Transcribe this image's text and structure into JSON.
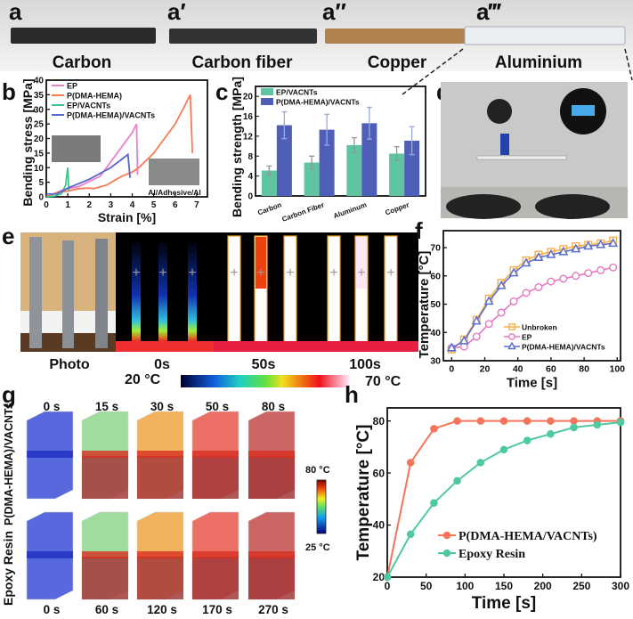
{
  "panel_a": {
    "labels": [
      "a",
      "a′",
      "a″",
      "a‴"
    ],
    "items": [
      "Carbon",
      "Carbon fiber",
      "Copper",
      "Aluminium"
    ]
  },
  "panel_b": {
    "label": "b",
    "inset_label": "Al/Adhesive/Al"
  },
  "panel_c": {
    "label": "c"
  },
  "panel_d": {
    "label": "d"
  },
  "panel_e": {
    "label": "e",
    "frames": [
      "Photo",
      "0s",
      "50s",
      "100s"
    ],
    "colorbar_min": "20 °C",
    "colorbar_max": "70 °C"
  },
  "panel_f": {
    "label": "f"
  },
  "panel_g": {
    "label": "g",
    "row_labels": [
      "P(DMA-HEMA)/VACNTs",
      "Epoxy Resin"
    ],
    "top_times": [
      "0 s",
      "15 s",
      "30 s",
      "50 s",
      "80 s"
    ],
    "bottom_times": [
      "0 s",
      "60 s",
      "120 s",
      "170 s",
      "270 s"
    ],
    "colorbar_max": "80 °C",
    "colorbar_min": "25 °C",
    "box_colors": [
      "#3a4fd8",
      "#8fd88f",
      "#f2a640",
      "#e8564a",
      "#c44a48"
    ]
  },
  "panel_h": {
    "label": "h"
  },
  "chart_data": [
    {
      "id": "b",
      "type": "line",
      "xlabel": "Strain [%]",
      "ylabel": "Bending stress [MPa]",
      "xlim": [
        0,
        7.5
      ],
      "ylim": [
        0,
        40
      ],
      "xticks": [
        0,
        1,
        2,
        3,
        4,
        5,
        6,
        7
      ],
      "yticks": [
        0,
        5,
        10,
        15,
        20,
        25,
        30,
        35,
        40
      ],
      "legend": "top-left",
      "series": [
        {
          "name": "EP",
          "color": "#ee7fc8",
          "x": [
            0,
            0.5,
            0.8,
            1.5,
            2.5,
            3,
            3.5,
            4,
            4.2,
            4.25
          ],
          "y": [
            0,
            1.5,
            2.5,
            3.5,
            7,
            12,
            17,
            22,
            25,
            7.5
          ]
        },
        {
          "name": "P(DMA-HEMA)",
          "color": "#fb7a55",
          "x": [
            0,
            0.5,
            1,
            1.5,
            2,
            2.2,
            2.8,
            3.5,
            4,
            4.3,
            5,
            5.5,
            6,
            6.5,
            6.7,
            6.8
          ],
          "y": [
            0,
            1.5,
            2,
            2.8,
            3,
            2.8,
            4,
            7,
            8.5,
            10,
            15,
            20,
            25,
            32,
            35,
            15
          ]
        },
        {
          "name": "EP/VACNTs",
          "color": "#3cc48a",
          "x": [
            0,
            0.4,
            0.7,
            0.9,
            1,
            1.05
          ],
          "y": [
            0,
            0.3,
            1,
            4,
            10,
            2
          ]
        },
        {
          "name": "P(DMA-HEMA)/VACNTs",
          "color": "#5566cc",
          "x": [
            0,
            0.5,
            1,
            2,
            3,
            3.8,
            3.9
          ],
          "y": [
            1,
            1,
            3,
            6,
            10,
            14.5,
            6.5
          ]
        }
      ]
    },
    {
      "id": "c",
      "type": "bar",
      "ylabel": "Bending strength [MPa]",
      "categories": [
        "Carbon",
        "Carbon Fiber",
        "Aluminum",
        "Copper"
      ],
      "ylim": [
        0,
        22
      ],
      "yticks": [
        0,
        4,
        8,
        12,
        16,
        20
      ],
      "legend": "top-left",
      "series": [
        {
          "name": "EP/VACNTs",
          "color": "#5fc4a0",
          "values": [
            5.1,
            6.7,
            10.2,
            8.5
          ],
          "errors": [
            0.9,
            1.3,
            1.5,
            1.4
          ]
        },
        {
          "name": "P(DMA-HEMA)/VACNTs",
          "color": "#4f5fb8",
          "values": [
            14.2,
            13.3,
            14.6,
            11.1
          ],
          "errors": [
            2.7,
            3.1,
            3.2,
            2.8
          ]
        }
      ]
    },
    {
      "id": "f",
      "type": "line",
      "xlabel": "Time [s]",
      "ylabel": "Temperature [°C]",
      "xlim": [
        -5,
        102
      ],
      "ylim": [
        30,
        76
      ],
      "xticks": [
        0,
        20,
        40,
        60,
        80,
        100
      ],
      "yticks": [
        30,
        40,
        50,
        60,
        70
      ],
      "legend": "bottom-right",
      "x": [
        0,
        7.5,
        15,
        22.5,
        30,
        37.5,
        45,
        52.5,
        60,
        67.5,
        75,
        82.5,
        90,
        97.5
      ],
      "series": [
        {
          "name": "Unbroken",
          "color": "#f7b04a",
          "marker": "square",
          "values": [
            34,
            37.5,
            44.5,
            52,
            57.5,
            62,
            65.5,
            67.5,
            68.5,
            69.5,
            70.5,
            71,
            71.5,
            72.5
          ]
        },
        {
          "name": "EP",
          "color": "#e678c0",
          "marker": "circle",
          "values": [
            34.5,
            35,
            38.5,
            43,
            47,
            51,
            54,
            56,
            58,
            59,
            60,
            61,
            62,
            63
          ]
        },
        {
          "name": "P(DMA-HEMA)/VACNTs",
          "color": "#5a6ed0",
          "marker": "triangle",
          "values": [
            34.5,
            37,
            44,
            51,
            56.5,
            61,
            64.5,
            66.5,
            67.5,
            68.5,
            69.5,
            70.5,
            71,
            71.5
          ]
        }
      ]
    },
    {
      "id": "h",
      "type": "line",
      "xlabel": "Time [s]",
      "ylabel": "Temperature [°C]",
      "xlim": [
        0,
        300
      ],
      "ylim": [
        20,
        85
      ],
      "xticks": [
        0,
        50,
        100,
        150,
        200,
        250,
        300
      ],
      "yticks": [
        20,
        40,
        60,
        80
      ],
      "legend": "bottom-right",
      "x": [
        0,
        30,
        60,
        90,
        120,
        150,
        180,
        210,
        240,
        270,
        300
      ],
      "series": [
        {
          "name": "P(DMA-HEMA/VACNTs)",
          "color": "#f4755a",
          "marker": "circle",
          "values": [
            20,
            64,
            77,
            80,
            80,
            80,
            80,
            80,
            80,
            80,
            80
          ]
        },
        {
          "name": "Epoxy Resin",
          "color": "#4fc9a0",
          "marker": "circle",
          "values": [
            20,
            36.5,
            48.5,
            57,
            64,
            69,
            72.5,
            75,
            77.5,
            78.5,
            79.5
          ]
        }
      ]
    }
  ]
}
